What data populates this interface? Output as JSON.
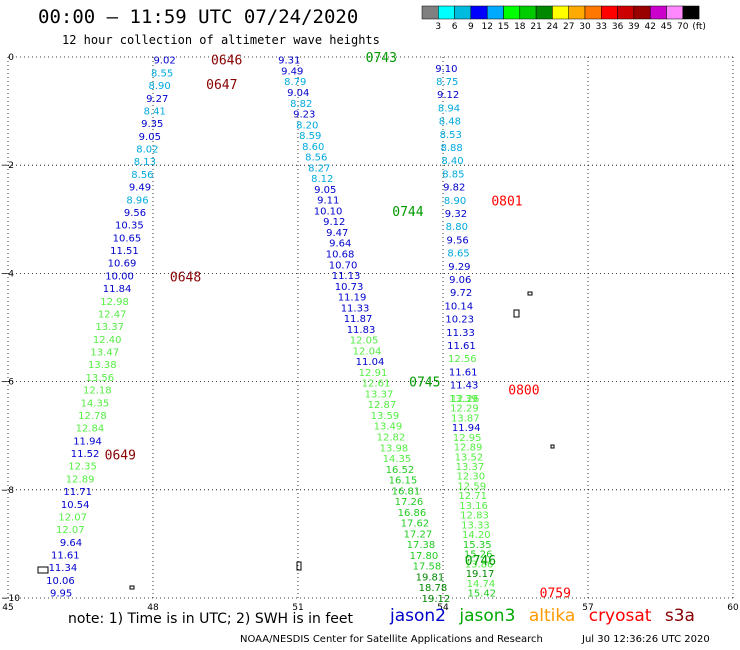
{
  "header": {
    "title": "00:00 – 11:59 UTC 07/24/2020",
    "subtitle": "12 hour collection of altimeter wave heights"
  },
  "scale": {
    "labels": [
      "3",
      "6",
      "9",
      "12",
      "15",
      "18",
      "21",
      "24",
      "27",
      "30",
      "33",
      "36",
      "39",
      "42",
      "45",
      "70",
      "(ft)"
    ],
    "colors": [
      "#808080",
      "#00ffff",
      "#00bbdd",
      "#0000ff",
      "#00aaff",
      "#00ff00",
      "#00cc00",
      "#008800",
      "#ffff00",
      "#ffaa00",
      "#ff7700",
      "#ff0000",
      "#cc0000",
      "#990000",
      "#cc00cc",
      "#ff88ff",
      "#000000"
    ]
  },
  "footer": {
    "note": "note:  1) Time is in UTC;  2) SWH is in feet",
    "credit": "NOAA/NESDIS Center for Satellite Applications and Research",
    "timestamp": "Jul 30 12:36:26 UTC 2020",
    "legend": [
      {
        "label": "jason2",
        "color": "#0000cc"
      },
      {
        "label": "jason3",
        "color": "#00aa00"
      },
      {
        "label": "altika",
        "color": "#ff9900"
      },
      {
        "label": "cryosat",
        "color": "#ff0000"
      },
      {
        "label": "s3a",
        "color": "#880000"
      }
    ]
  },
  "chart_data": {
    "type": "scatter",
    "xlabel": "",
    "ylabel": "",
    "xlim": [
      45,
      60
    ],
    "ylim": [
      -10,
      0
    ],
    "x_ticks": [
      "45",
      "48",
      "51",
      "54",
      "57",
      "60"
    ],
    "y_ticks": [
      "0",
      "−2",
      "−4",
      "−6",
      "−8",
      "−10"
    ],
    "grid": "dotted",
    "color_scale": [
      {
        "max": 6,
        "color": "#00ffff"
      },
      {
        "max": 9,
        "color": "#00aadd"
      },
      {
        "max": 12,
        "color": "#0000cc"
      },
      {
        "max": 15,
        "color": "#55ee44"
      },
      {
        "max": 18,
        "color": "#22cc22"
      },
      {
        "max": 21,
        "color": "#008800"
      },
      {
        "max": 99,
        "color": "#ccaa00"
      }
    ],
    "tracks": [
      {
        "x0": 48.47,
        "y0": -0.05,
        "x1": 46.33,
        "y1": -9.9,
        "values": [
          "9.02",
          "8.55",
          "8.90",
          "9.27",
          "8.41",
          "9.35",
          "9.05",
          "8.02",
          "8.13",
          "8.56",
          "9.49",
          "8.96",
          "9.56",
          "10.35",
          "10.65",
          "11.51",
          "10.69",
          "10.00",
          "11.84",
          "12.98",
          "12.47",
          "13.37",
          "12.40",
          "13.47",
          "13.38",
          "13.56",
          "12.18",
          "14.35",
          "12.78",
          "12.84",
          "11.94",
          "11.52",
          "12.35",
          "12.89",
          "11.71",
          "10.54",
          "12.07",
          "12.07",
          "9.64",
          "11.61",
          "11.34",
          "10.06",
          "9.95"
        ]
      },
      {
        "x0": 51.05,
        "y0": -0.05,
        "x1": 54.15,
        "y1": -10.0,
        "values": [
          "9.31",
          "9.49",
          "8.79",
          "9.04",
          "8.82",
          "9.23",
          "8.20",
          "8.59",
          "8.60",
          "8.56",
          "8.27",
          "8.12",
          "9.05",
          "9.11",
          "10.10",
          "9.12",
          "9.47",
          "9.64",
          "10.68",
          "10.70",
          "11.13",
          "10.73",
          "11.19",
          "11.33",
          "11.87",
          "11.83",
          "12.05",
          "12.04",
          "11.04",
          "12.91",
          "12.61",
          "13.37",
          "12.87",
          "13.59",
          "13.49",
          "12.82",
          "13.98",
          "14.35",
          "16.52",
          "16.15",
          "16.81",
          "17.26",
          "16.86",
          "17.62",
          "17.27",
          "17.38",
          "17.80",
          "17.58",
          "19.81",
          "18.78",
          "19.12"
        ]
      },
      {
        "x0": 54.3,
        "y0": -0.2,
        "x1": 54.75,
        "y1": -6.3,
        "values": [
          "9.10",
          "8.75",
          "9.12",
          "8.94",
          "8.48",
          "8.53",
          "8.88",
          "8.40",
          "8.85",
          "9.82",
          "8.90",
          "9.32",
          "8.80",
          "9.56",
          "8.65",
          "9.29",
          "9.06",
          "9.72",
          "10.14",
          "10.23",
          "11.33",
          "11.61",
          "12.56",
          "11.61",
          "11.43",
          "12.26"
        ]
      },
      {
        "x0": 54.72,
        "y0": -6.3,
        "x1": 55.1,
        "y1": -9.9,
        "values": [
          "13.39",
          "12.29",
          "13.87",
          "11.94",
          "12.95",
          "12.89",
          "13.52",
          "13.37",
          "12.30",
          "12.59",
          "12.71",
          "13.16",
          "12.83",
          "13.33",
          "14.20",
          "15.35",
          "15.26",
          "13.86",
          "19.17",
          "14.74",
          "15.42"
        ]
      }
    ],
    "time_labels": [
      {
        "text": "0646",
        "lon": 49.2,
        "lat": -0.05,
        "color": "#880000"
      },
      {
        "text": "0647",
        "lon": 49.1,
        "lat": -0.5,
        "color": "#880000"
      },
      {
        "text": "0648",
        "lon": 48.35,
        "lat": -4.06,
        "color": "#880000"
      },
      {
        "text": "0649",
        "lon": 47.0,
        "lat": -7.35,
        "color": "#880000"
      },
      {
        "text": "0743",
        "lon": 52.4,
        "lat": 0.0,
        "color": "#009900"
      },
      {
        "text": "0744",
        "lon": 52.95,
        "lat": -2.85,
        "color": "#009900"
      },
      {
        "text": "0745",
        "lon": 53.3,
        "lat": -6.0,
        "color": "#009900"
      },
      {
        "text": "0746",
        "lon": 54.45,
        "lat": -9.3,
        "color": "#009900"
      },
      {
        "text": "0801",
        "lon": 55.0,
        "lat": -2.65,
        "color": "#ff0000"
      },
      {
        "text": "0800",
        "lon": 55.35,
        "lat": -6.15,
        "color": "#ff0000"
      },
      {
        "text": "0759",
        "lon": 56.0,
        "lat": -9.9,
        "color": "#ff0000"
      }
    ]
  }
}
